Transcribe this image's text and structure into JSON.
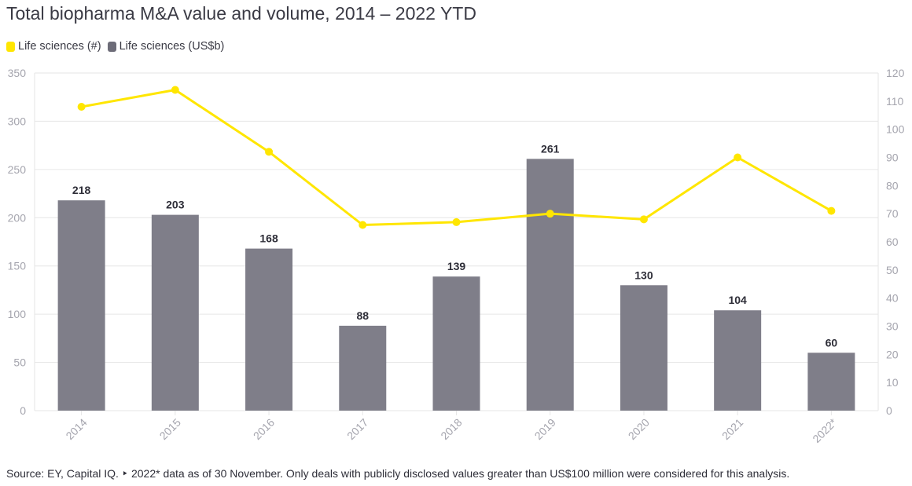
{
  "title": "Total biopharma M&A value and volume, 2014 – 2022 YTD",
  "source": "Source: EY, Capital IQ. ‣ 2022* data as of 30 November. Only deals with publicly disclosed values greater than US$100 million were considered for this analysis.",
  "colors": {
    "line": "#ffe600",
    "bar": "#7f7e89",
    "grid": "#e6e6e6",
    "axis_text": "#a5a5ae",
    "label_text": "#2e2e38"
  },
  "legend": [
    {
      "label": "Life sciences (#)",
      "color": "#ffe600"
    },
    {
      "label": "Life sciences (US$b)",
      "color": "#6d6c78"
    }
  ],
  "chart_data": {
    "type": "bar+line",
    "categories": [
      "2014",
      "2015",
      "2016",
      "2017",
      "2018",
      "2019",
      "2020",
      "2021",
      "2022*"
    ],
    "series": [
      {
        "name": "Life sciences (US$b)",
        "type": "bar",
        "axis": "left",
        "values": [
          218,
          203,
          168,
          88,
          139,
          261,
          130,
          104,
          60
        ],
        "data_labels": [
          "218",
          "203",
          "168",
          "88",
          "139",
          "261",
          "130",
          "104",
          "60"
        ]
      },
      {
        "name": "Life sciences (#)",
        "type": "line",
        "axis": "right",
        "values": [
          108,
          114,
          92,
          66,
          67,
          70,
          68,
          90,
          71
        ]
      }
    ],
    "y_left": {
      "min": 0,
      "max": 350,
      "ticks": [
        "0",
        "50",
        "100",
        "150",
        "200",
        "250",
        "300",
        "350"
      ]
    },
    "y_right": {
      "min": 0,
      "max": 120,
      "ticks": [
        "0",
        "10",
        "20",
        "30",
        "40",
        "50",
        "60",
        "70",
        "80",
        "90",
        "100",
        "110",
        "120"
      ]
    },
    "grid": true,
    "legend_position": "top-left"
  }
}
